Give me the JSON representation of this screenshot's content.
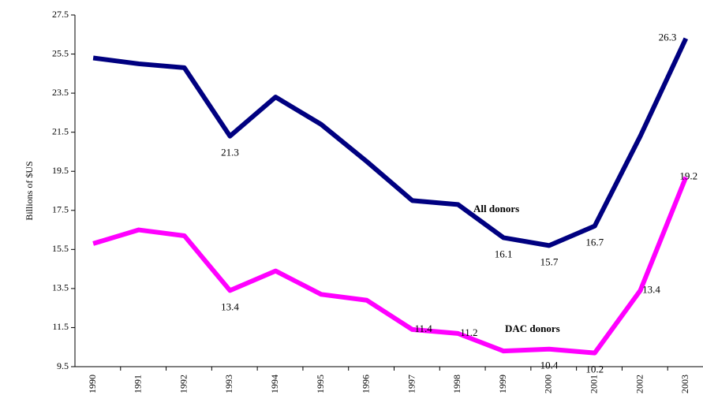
{
  "chart_data": {
    "type": "line",
    "y_label": "Billions of $US",
    "categories": [
      "1990",
      "1991",
      "1992",
      "1993",
      "1994",
      "1995",
      "1996",
      "1997",
      "1998",
      "1999",
      "2000",
      "2001",
      "2002",
      "2003"
    ],
    "series": [
      {
        "name": "All donors",
        "color": "#000080",
        "values": [
          25.3,
          25.0,
          24.8,
          21.3,
          23.3,
          21.9,
          20.0,
          18.0,
          17.8,
          16.1,
          15.7,
          16.7,
          21.3,
          26.3
        ],
        "value_labels": [
          null,
          null,
          null,
          "21.3",
          null,
          null,
          null,
          null,
          null,
          "16.1",
          "15.7",
          "16.7",
          null,
          "26.3"
        ]
      },
      {
        "name": "DAC donors",
        "color": "#ff00ff",
        "values": [
          15.8,
          16.5,
          16.2,
          13.4,
          14.4,
          13.2,
          12.9,
          11.4,
          11.2,
          10.3,
          10.4,
          10.2,
          13.4,
          19.2
        ],
        "value_labels": [
          null,
          null,
          null,
          "13.4",
          null,
          null,
          null,
          "11.4",
          "11.2",
          null,
          "10.4",
          "10.2",
          "13.4",
          "19.2"
        ]
      }
    ],
    "ylim": [
      9.5,
      27.5
    ],
    "yticks": [
      9.5,
      11.5,
      13.5,
      15.5,
      17.5,
      19.5,
      21.5,
      23.5,
      25.5,
      27.5
    ]
  }
}
